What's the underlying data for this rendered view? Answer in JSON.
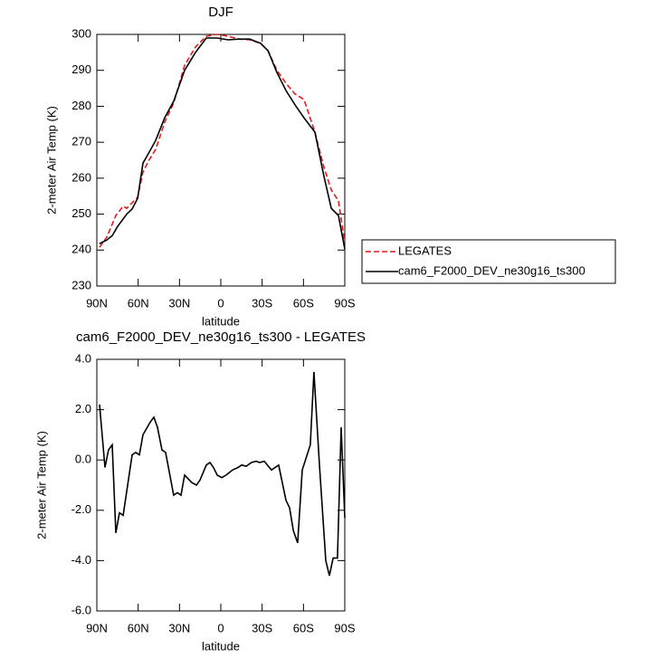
{
  "chart_data": [
    {
      "type": "line",
      "title": "DJF",
      "xlabel": "latitude",
      "ylabel": "2-meter Air Temp (K)",
      "xlim": [
        90,
        -90
      ],
      "xticks": [
        {
          "value": 90,
          "label": "90N"
        },
        {
          "value": 60,
          "label": "60N"
        },
        {
          "value": 30,
          "label": "30N"
        },
        0,
        {
          "value": -30,
          "label": "30S"
        },
        {
          "value": -60,
          "label": "60S"
        },
        {
          "value": -90,
          "label": "90S"
        }
      ],
      "ylim": [
        230,
        300
      ],
      "yticks": [
        230,
        240,
        250,
        260,
        270,
        280,
        290,
        300
      ],
      "legend": "right",
      "series": [
        {
          "name": "LEGATES",
          "color": "#e41a1c",
          "dash": true,
          "x": [
            88.0,
            82.8,
            76.2,
            70.9,
            68.3,
            60.4,
            56.5,
            52.6,
            47.3,
            40.7,
            34.2,
            26.3,
            18.4,
            10.5,
            2.6,
            -5.3,
            -13.1,
            -21.0,
            -28.9,
            -34.2,
            -40.7,
            -47.3,
            -53.9,
            -60.4,
            -68.3,
            -74.9,
            -80.2,
            -85.4,
            -90
          ],
          "values": [
            240.8,
            243.6,
            249.6,
            252.2,
            251.6,
            254.7,
            261.7,
            264.7,
            268,
            275.6,
            280.9,
            291.4,
            296.5,
            299.5,
            300,
            299.5,
            298.7,
            298.5,
            297.5,
            295.5,
            290,
            286.4,
            283.4,
            281.9,
            272.8,
            263,
            256.7,
            253.7,
            242
          ]
        },
        {
          "name": "cam6_F2000_DEV_ne30g16_ts300",
          "color": "#000000",
          "dash": false,
          "x": [
            88.0,
            82.8,
            78.8,
            74.9,
            68.3,
            64.4,
            60.4,
            56.5,
            52.6,
            47.3,
            40.7,
            34.2,
            26.3,
            18.4,
            10.5,
            2.6,
            -5.3,
            -13.1,
            -21.0,
            -28.9,
            -34.2,
            -40.7,
            -47.3,
            -53.9,
            -60.4,
            -68.3,
            -74.9,
            -80.2,
            -85.4,
            -90
          ],
          "values": [
            241.8,
            242.8,
            244,
            246.6,
            250,
            251.4,
            254.4,
            264.2,
            266.8,
            270.5,
            276.8,
            281.4,
            290,
            295,
            299,
            299,
            298.5,
            298.7,
            298.7,
            297.5,
            295.5,
            289.4,
            284.4,
            280.4,
            276.8,
            272.8,
            260.5,
            251.6,
            249.6,
            240.3
          ]
        }
      ]
    },
    {
      "type": "line",
      "title": "cam6_F2000_DEV_ne30g16_ts300 - LEGATES",
      "xlabel": "latitude",
      "ylabel": "2-meter Air Temp (K)",
      "xlim": [
        90,
        -90
      ],
      "xticks": [
        {
          "value": 90,
          "label": "90N"
        },
        {
          "value": 60,
          "label": "60N"
        },
        {
          "value": 30,
          "label": "30N"
        },
        0,
        {
          "value": -30,
          "label": "30S"
        },
        {
          "value": -60,
          "label": "60S"
        },
        {
          "value": -90,
          "label": "90S"
        }
      ],
      "ylim": [
        -6,
        4
      ],
      "yticks": [
        {
          "value": -6,
          "label": "-6.0"
        },
        {
          "value": -4,
          "label": "-4.0"
        },
        {
          "value": -2,
          "label": "-2.0"
        },
        {
          "value": 0,
          "label": "0.0"
        },
        {
          "value": 2,
          "label": "2.0"
        },
        {
          "value": 4,
          "label": "4.0"
        }
      ],
      "series": [
        {
          "color": "#000000",
          "dash": false,
          "x": [
            88.0,
            84.1,
            81.5,
            78.8,
            76.2,
            73.6,
            70.9,
            64.4,
            61.8,
            59.1,
            56.5,
            51.3,
            48.6,
            46.0,
            42.7,
            40.1,
            34.2,
            31.5,
            28.9,
            26.3,
            21.0,
            17.7,
            15.1,
            10.5,
            7.9,
            5.3,
            2.6,
            -0.7,
            -3.9,
            -8.5,
            -12.5,
            -15.1,
            -18.4,
            -22.3,
            -25.6,
            -28.2,
            -31.5,
            -36.8,
            -42.0,
            -47.3,
            -49.9,
            -52.6,
            -55.8,
            -59.1,
            -65.0,
            -67.6,
            -71.6,
            -76.2,
            -78.8,
            -81.5,
            -84.7,
            -87.4,
            -90
          ],
          "values": [
            2.2,
            -0.3,
            0.4,
            0.6,
            -2.9,
            -2.1,
            -2.2,
            0.2,
            0.3,
            0.2,
            1.0,
            1.5,
            1.7,
            1.3,
            0.4,
            0.3,
            -1.4,
            -1.3,
            -1.4,
            -0.6,
            -0.9,
            -1.0,
            -0.8,
            -0.2,
            -0.1,
            -0.3,
            -0.6,
            -0.7,
            -0.6,
            -0.4,
            -0.3,
            -0.2,
            -0.25,
            -0.1,
            -0.05,
            -0.1,
            -0.05,
            -0.4,
            -0.2,
            -1.6,
            -1.9,
            -2.8,
            -3.3,
            -0.4,
            0.6,
            3.5,
            -0.2,
            -4.0,
            -4.6,
            -3.9,
            -3.9,
            1.3,
            -2.3
          ]
        }
      ]
    }
  ]
}
